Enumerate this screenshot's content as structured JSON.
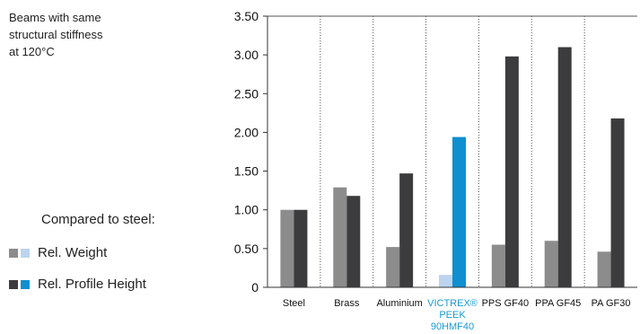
{
  "description": "Beams with same\nstructural stiffness\nat 120°C",
  "legend": {
    "title": "Compared to steel:",
    "items": [
      {
        "label": "Rel. Weight",
        "colors": [
          "#8c8c8c",
          "#bcd4ee"
        ]
      },
      {
        "label": "Rel. Profile Height",
        "colors": [
          "#3c3c3e",
          "#0f8fd0"
        ]
      }
    ]
  },
  "colors": {
    "weight": "#8c8c8c",
    "height": "#3c3c3e",
    "weight_highlight": "#bcd4ee",
    "height_highlight": "#0f8fd0",
    "highlight_text": "#1a9ad6"
  },
  "chart_data": {
    "type": "bar",
    "categories": [
      "Steel",
      "Brass",
      "Aluminium",
      "VICTREX®\nPEEK\n90HMF40",
      "PPS GF40",
      "PPA GF45",
      "PA GF30"
    ],
    "highlight_index": 3,
    "series": [
      {
        "name": "Rel. Weight",
        "values": [
          1.0,
          1.29,
          0.52,
          0.16,
          0.55,
          0.6,
          0.46
        ]
      },
      {
        "name": "Rel. Profile Height",
        "values": [
          1.0,
          1.18,
          1.47,
          1.94,
          2.98,
          3.1,
          2.18
        ]
      }
    ],
    "y_ticks": [
      "0",
      "0.50",
      "1.00",
      "1.50",
      "2.00",
      "2.50",
      "3.00",
      "3.50"
    ],
    "ylim": [
      0,
      3.5
    ],
    "grid": "vertical-dotted"
  }
}
